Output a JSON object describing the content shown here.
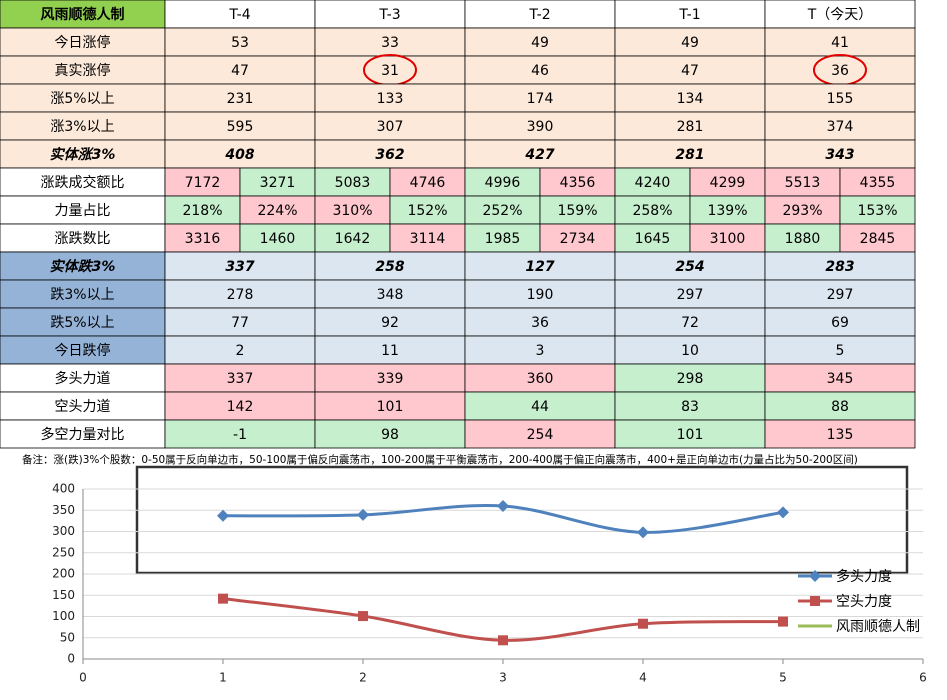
{
  "table": {
    "header": [
      "风雨顺德人制",
      "T-4",
      "T-3",
      "T-2",
      "T-1",
      "T（今天）"
    ],
    "rows": [
      {
        "label": "今日涨停",
        "style": "peach",
        "cells": [
          "53",
          "33",
          "49",
          "49",
          "41"
        ]
      },
      {
        "label": "真实涨停",
        "style": "peach",
        "cells": [
          "47",
          "31",
          "46",
          "47",
          "36"
        ],
        "circled": [
          false,
          true,
          false,
          false,
          true
        ]
      },
      {
        "label": "涨5%以上",
        "style": "peach",
        "cells": [
          "231",
          "133",
          "174",
          "134",
          "155"
        ]
      },
      {
        "label": "涨3%以上",
        "style": "peach",
        "cells": [
          "595",
          "307",
          "390",
          "281",
          "374"
        ]
      },
      {
        "label": "实体涨3%",
        "style": "peach-bold",
        "cells": [
          "408",
          "362",
          "427",
          "281",
          "343"
        ]
      },
      {
        "label": "涨跌成交额比",
        "style": "pair",
        "cells": [
          [
            "7172",
            "3271"
          ],
          [
            "5083",
            "4746"
          ],
          [
            "4996",
            "4356"
          ],
          [
            "4240",
            "4299"
          ],
          [
            "5513",
            "4355"
          ]
        ],
        "colors": [
          [
            "#ffc7ce",
            "#c6efce"
          ],
          [
            "#c6efce",
            "#ffc7ce"
          ],
          [
            "#c6efce",
            "#ffc7ce"
          ],
          [
            "#c6efce",
            "#ffc7ce"
          ],
          [
            "#ffc7ce",
            "#ffc7ce"
          ]
        ]
      },
      {
        "label": "力量占比",
        "style": "pair",
        "cells": [
          [
            "218%",
            "224%"
          ],
          [
            "310%",
            "152%"
          ],
          [
            "252%",
            "159%"
          ],
          [
            "258%",
            "139%"
          ],
          [
            "293%",
            "153%"
          ]
        ],
        "colors": [
          [
            "#c6efce",
            "#ffc7ce"
          ],
          [
            "#ffc7ce",
            "#c6efce"
          ],
          [
            "#c6efce",
            "#c6efce"
          ],
          [
            "#c6efce",
            "#c6efce"
          ],
          [
            "#ffc7ce",
            "#c6efce"
          ]
        ]
      },
      {
        "label": "涨跌数比",
        "style": "pair",
        "cells": [
          [
            "3316",
            "1460"
          ],
          [
            "1642",
            "3114"
          ],
          [
            "1985",
            "2734"
          ],
          [
            "1645",
            "3100"
          ],
          [
            "1880",
            "2845"
          ]
        ],
        "colors": [
          [
            "#ffc7ce",
            "#c6efce"
          ],
          [
            "#c6efce",
            "#ffc7ce"
          ],
          [
            "#c6efce",
            "#ffc7ce"
          ],
          [
            "#c6efce",
            "#ffc7ce"
          ],
          [
            "#c6efce",
            "#ffc7ce"
          ]
        ]
      },
      {
        "label": "实体跌3%",
        "style": "blue-bold",
        "cells": [
          "337",
          "258",
          "127",
          "254",
          "283"
        ]
      },
      {
        "label": "跌3%以上",
        "style": "blue",
        "cells": [
          "278",
          "348",
          "190",
          "297",
          "297"
        ]
      },
      {
        "label": "跌5%以上",
        "style": "blue",
        "cells": [
          "77",
          "92",
          "36",
          "72",
          "69"
        ]
      },
      {
        "label": "今日跌停",
        "style": "blue",
        "cells": [
          "2",
          "11",
          "3",
          "10",
          "5"
        ]
      },
      {
        "label": "多头力道",
        "style": "force",
        "cells": [
          "337",
          "339",
          "360",
          "298",
          "345"
        ],
        "colors": [
          "#ffc7ce",
          "#ffc7ce",
          "#ffc7ce",
          "#c6efce",
          "#ffc7ce"
        ]
      },
      {
        "label": "空头力道",
        "style": "force",
        "cells": [
          "142",
          "101",
          "44",
          "83",
          "88"
        ],
        "colors": [
          "#ffc7ce",
          "#ffc7ce",
          "#c6efce",
          "#c6efce",
          "#c6efce"
        ]
      },
      {
        "label": "多空力量对比",
        "style": "force",
        "cells": [
          "-1",
          "98",
          "254",
          "101",
          "135"
        ],
        "colors": [
          "#c6efce",
          "#c6efce",
          "#ffc7ce",
          "#c6efce",
          "#ffc7ce"
        ]
      }
    ]
  },
  "note": "备注：涨(跌)3%个股数：0-50属于反向单边市，50-100属于偏反向震荡市，100-200属于平衡震荡市，200-400属于偏正向震荡市，400+是正向单边市(力量占比为50-200区间)",
  "chart_data": {
    "type": "line",
    "x": [
      1,
      2,
      3,
      4,
      5
    ],
    "series": [
      {
        "name": "多头力度",
        "color": "#4f81bd",
        "marker": "diamond",
        "values": [
          337,
          339,
          360,
          298,
          345
        ]
      },
      {
        "name": "空头力度",
        "color": "#c0504d",
        "marker": "square",
        "values": [
          142,
          101,
          44,
          83,
          88
        ]
      },
      {
        "name": "风雨顺德人制",
        "color": "#9bbb59",
        "marker": "none",
        "values": [
          null,
          null,
          null,
          null,
          null
        ]
      }
    ],
    "xlim": [
      0,
      6
    ],
    "xticks": [
      0,
      1,
      2,
      3,
      4,
      5,
      6
    ],
    "ylim": [
      0,
      400
    ],
    "yticks": [
      0,
      50,
      100,
      150,
      200,
      250,
      300,
      350,
      400
    ],
    "grid": true,
    "smooth": true,
    "legend": "right"
  }
}
